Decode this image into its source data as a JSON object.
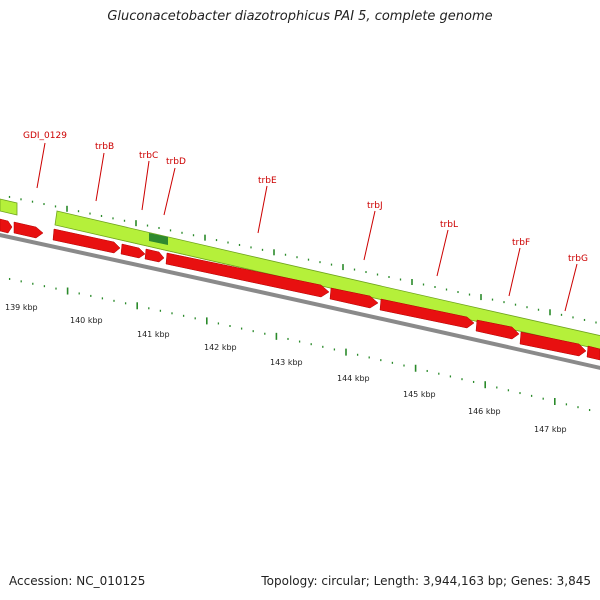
{
  "title": "Gluconacetobacter diazotrophicus PAI 5, complete genome",
  "footer": {
    "accession": "Accession: NC_010125",
    "summary": "Topology: circular; Length: 3,944,163 bp; Genes: 3,845"
  },
  "colors": {
    "forward_gene": "#b5f03a",
    "forward_gene_selected": "#2f8a2f",
    "reverse_gene": "#e81010",
    "backbone": "#7a7a7a",
    "tick": "#2a8a2a",
    "label": "#cc0000"
  },
  "gene_labels": [
    "GDI_0129",
    "trbB",
    "trbC",
    "trbD",
    "trbE",
    "trbJ",
    "trbL",
    "trbF",
    "trbG"
  ],
  "scale_labels": [
    "139 kbp",
    "140 kbp",
    "141 kbp",
    "142 kbp",
    "143 kbp",
    "144 kbp",
    "145 kbp",
    "146 kbp",
    "147 kbp"
  ]
}
